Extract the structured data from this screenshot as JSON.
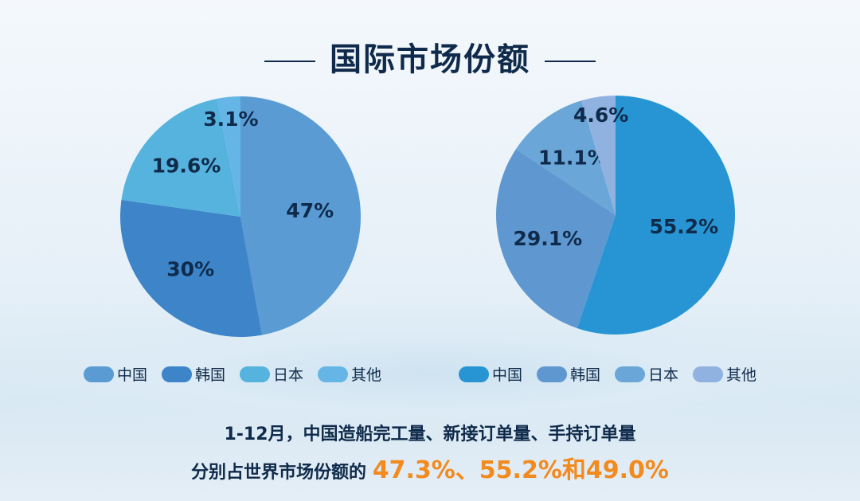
{
  "title": "国际市场份额",
  "chart_data": [
    {
      "type": "pie",
      "categories": [
        "中国",
        "韩国",
        "日本",
        "其他"
      ],
      "values": [
        47,
        30,
        19.6,
        3.1
      ],
      "labels": [
        "47%",
        "30%",
        "19.6%",
        "3.1%"
      ],
      "colors": [
        "#5a9bd4",
        "#3d85c8",
        "#56b3de",
        "#65b6e6"
      ],
      "legend": "bottom"
    },
    {
      "type": "pie",
      "categories": [
        "中国",
        "韩国",
        "日本",
        "其他"
      ],
      "values": [
        55.2,
        29.1,
        11.1,
        4.6
      ],
      "labels": [
        "55.2%",
        "29.1%",
        "11.1%",
        "4.6%"
      ],
      "colors": [
        "#2795d3",
        "#5f97d0",
        "#6aa6d8",
        "#90b2e0"
      ],
      "legend": "bottom"
    }
  ],
  "footer": {
    "line1": "1-12月，中国造船完工量、新接订单量、手持订单量",
    "line2_prefix": "分别占世界市场份额的 ",
    "line2_highlight": "47.3%、55.2%和49.0%"
  }
}
